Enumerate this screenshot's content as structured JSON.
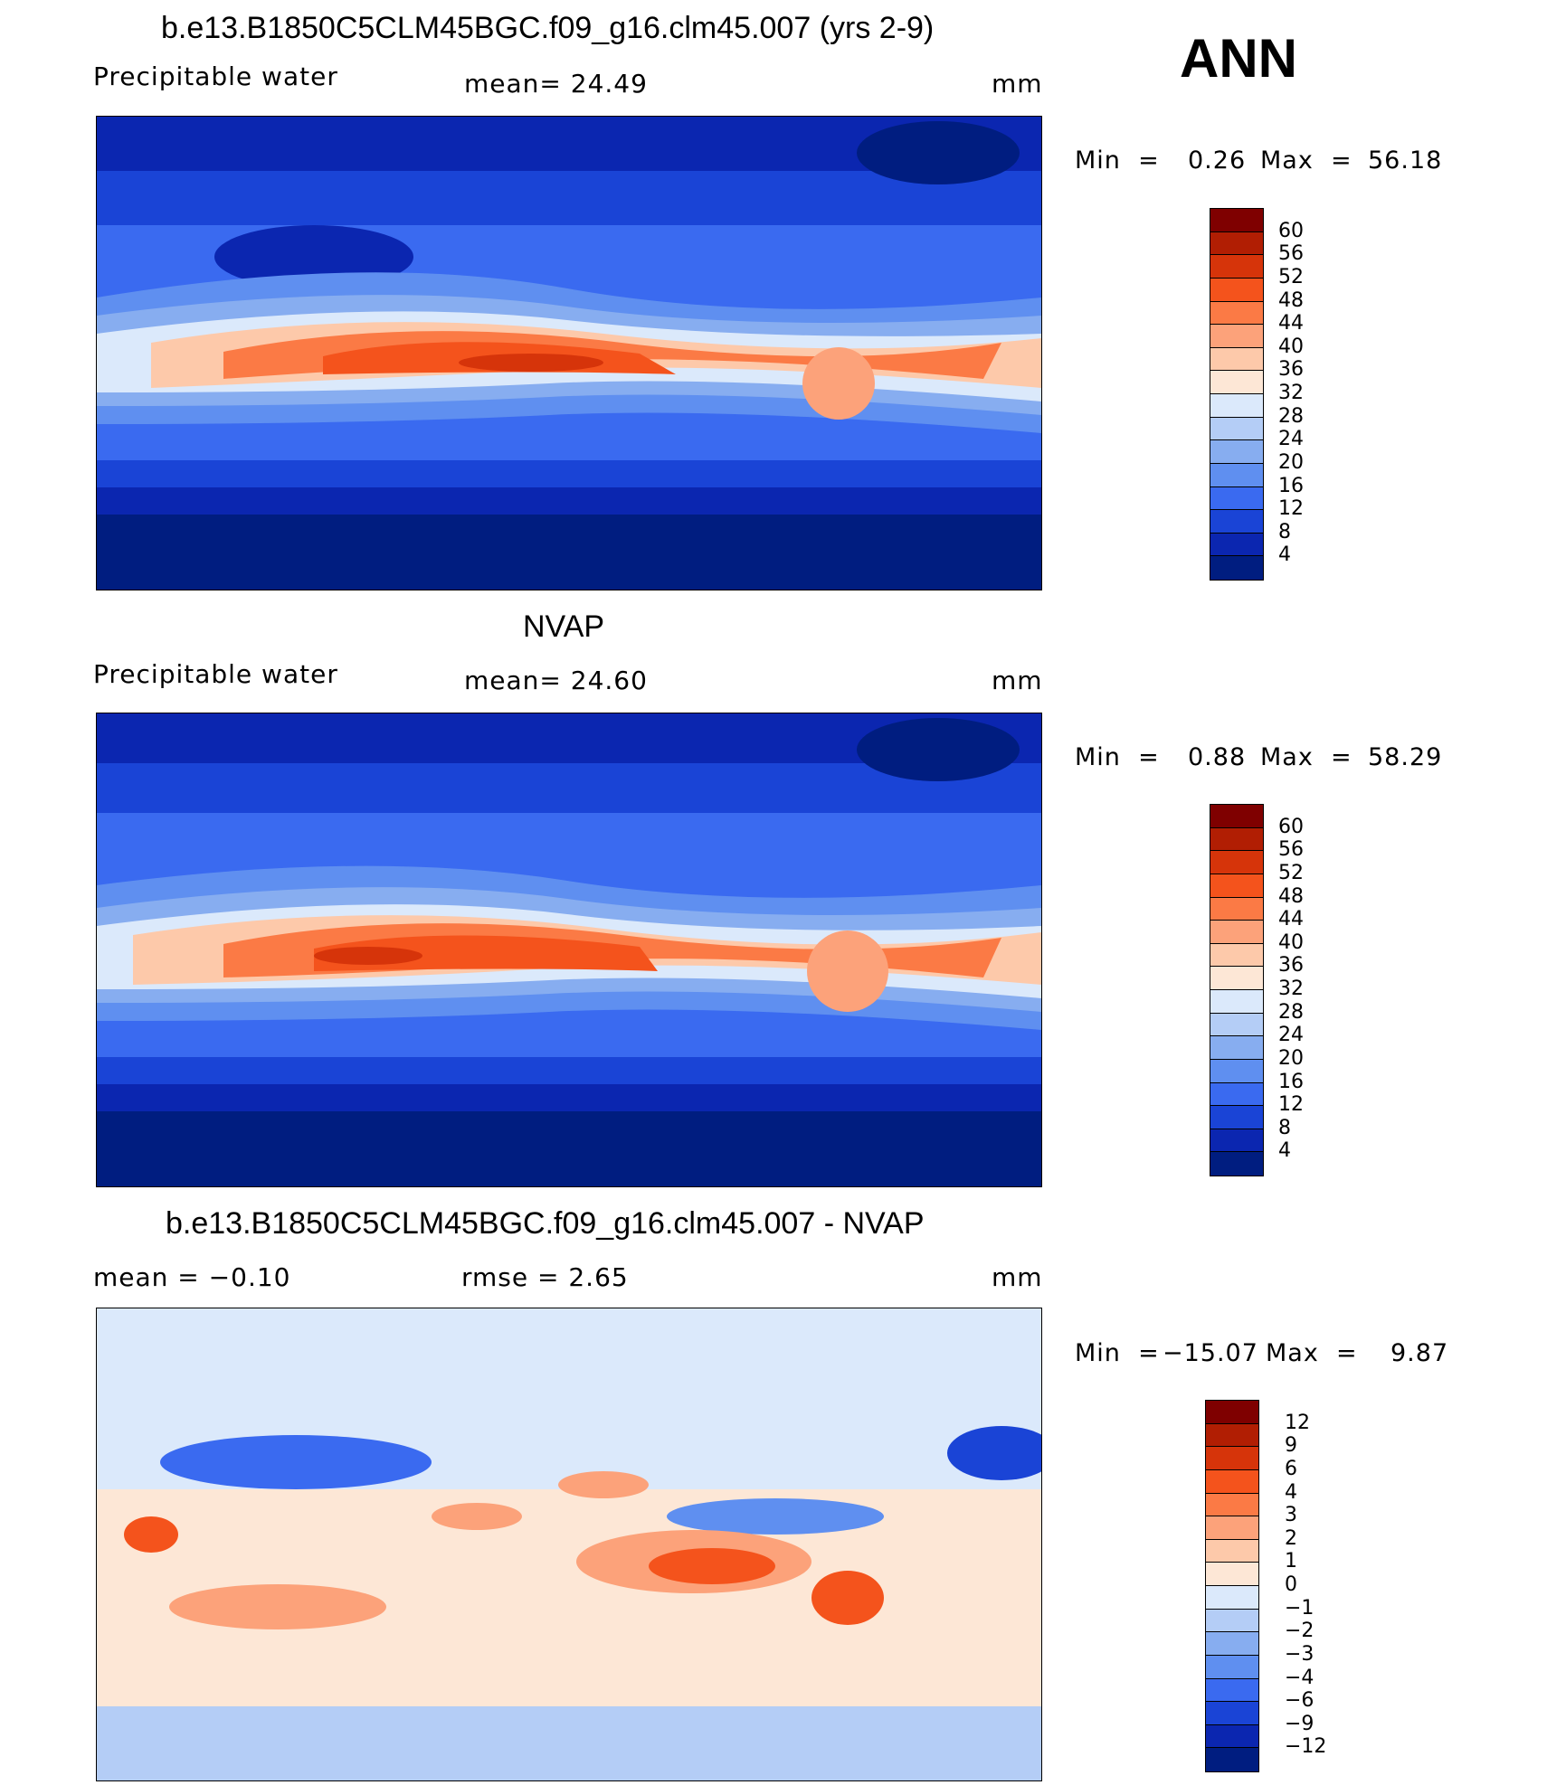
{
  "season": "ANN",
  "panels": [
    {
      "title": "b.e13.B1850C5CLM45BGC.f09_g16.clm45.007 (yrs 2-9)",
      "left_label": "Precipitable  water",
      "center_label": "mean=   24.49",
      "units": "mm",
      "min_label": "Min  =",
      "min_value": "0.26",
      "max_label": "Max  =",
      "max_value": "56.18",
      "colorbar_ticks": [
        "60",
        "56",
        "52",
        "48",
        "44",
        "40",
        "36",
        "32",
        "28",
        "24",
        "20",
        "16",
        "12",
        "8",
        "4"
      ],
      "colorbar_colors": [
        "#7f0000",
        "#b11e03",
        "#d6340a",
        "#f4531c",
        "#fb7a45",
        "#fca27a",
        "#fdc9aa",
        "#fde7d6",
        "#dbe9fb",
        "#b4cdf6",
        "#87adf0",
        "#5f8ff0",
        "#3a6af0",
        "#1a44d6",
        "#0b26b0",
        "#001d80"
      ]
    },
    {
      "title": "NVAP",
      "left_label": "Precipitable  water",
      "center_label": "mean=   24.60",
      "units": "mm",
      "min_label": "Min  =",
      "min_value": "0.88",
      "max_label": "Max  =",
      "max_value": "58.29",
      "colorbar_ticks": [
        "60",
        "56",
        "52",
        "48",
        "44",
        "40",
        "36",
        "32",
        "28",
        "24",
        "20",
        "16",
        "12",
        "8",
        "4"
      ],
      "colorbar_colors": [
        "#7f0000",
        "#b11e03",
        "#d6340a",
        "#f4531c",
        "#fb7a45",
        "#fca27a",
        "#fdc9aa",
        "#fde7d6",
        "#dbe9fb",
        "#b4cdf6",
        "#87adf0",
        "#5f8ff0",
        "#3a6af0",
        "#1a44d6",
        "#0b26b0",
        "#001d80"
      ]
    },
    {
      "title": "b.e13.B1850C5CLM45BGC.f09_g16.clm45.007 - NVAP",
      "left_label": "mean  =   −0.10",
      "center_label": "rmse  =     2.65",
      "units": "mm",
      "min_label": "Min  =",
      "min_value": "−15.07",
      "max_label": "Max  =",
      "max_value": "9.87",
      "colorbar_ticks": [
        "12",
        "9",
        "6",
        "4",
        "3",
        "2",
        "1",
        "0",
        "−1",
        "−2",
        "−3",
        "−4",
        "−6",
        "−9",
        "−12"
      ],
      "colorbar_colors": [
        "#7f0000",
        "#b11e03",
        "#d6340a",
        "#f4531c",
        "#fb7a45",
        "#fca27a",
        "#fdc9aa",
        "#fde7d6",
        "#dbe9fb",
        "#b4cdf6",
        "#87adf0",
        "#5f8ff0",
        "#3a6af0",
        "#1a44d6",
        "#0b26b0",
        "#001d80"
      ]
    }
  ]
}
